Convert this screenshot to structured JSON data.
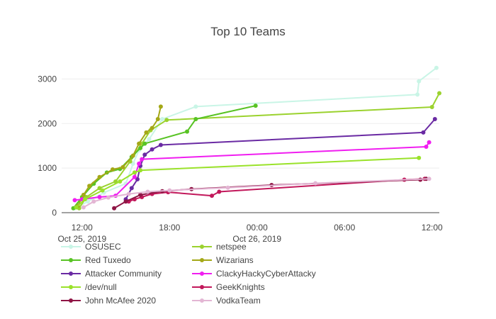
{
  "chart_data": {
    "type": "line",
    "title": "Top 10 Teams",
    "xlabel": "",
    "ylabel": "",
    "ylim": [
      0,
      3500
    ],
    "xlim_hours": [
      10.6,
      36.5
    ],
    "x_ticks": [
      {
        "hour": 12,
        "label": "12:00",
        "sublabel": "Oct 25, 2019"
      },
      {
        "hour": 18,
        "label": "18:00",
        "sublabel": ""
      },
      {
        "hour": 24,
        "label": "00:00",
        "sublabel": "Oct 26, 2019"
      },
      {
        "hour": 30,
        "label": "06:00",
        "sublabel": ""
      },
      {
        "hour": 36,
        "label": "12:00",
        "sublabel": ""
      }
    ],
    "y_ticks": [
      0,
      1000,
      2000,
      3000
    ],
    "x_unit_note": "x values are hours since Oct 25, 2019 00:00",
    "series": [
      {
        "name": "OSUSEC",
        "color": "#c9f5e6",
        "x": [
          11.5,
          12.4,
          13.5,
          15.0,
          15.5,
          15.9,
          16.6,
          17.5,
          19.8,
          35.0,
          35.1,
          36.3
        ],
        "y": [
          100,
          250,
          450,
          650,
          1100,
          1400,
          1650,
          2100,
          2380,
          2650,
          2950,
          3250
        ]
      },
      {
        "name": "netspee",
        "color": "#9bd22e",
        "x": [
          11.8,
          12.3,
          13.2,
          14.3,
          15.3,
          16.1,
          16.7,
          17.8,
          36.0,
          36.5
        ],
        "y": [
          100,
          350,
          550,
          700,
          1150,
          1550,
          1850,
          2080,
          2370,
          2680
        ]
      },
      {
        "name": "Red Tuxedo",
        "color": "#58c324",
        "x": [
          11.4,
          12.0,
          12.8,
          13.7,
          14.6,
          15.4,
          16.0,
          16.3,
          19.2,
          19.8,
          23.9
        ],
        "y": [
          100,
          350,
          650,
          900,
          980,
          1250,
          1450,
          1550,
          1820,
          2100,
          2400
        ]
      },
      {
        "name": "Wizarians",
        "color": "#a4a817",
        "x": [
          11.7,
          12.1,
          12.5,
          13.2,
          14.1,
          14.8,
          15.5,
          15.9,
          16.4,
          16.8,
          17.2,
          17.4
        ],
        "y": [
          150,
          400,
          600,
          800,
          970,
          1020,
          1280,
          1550,
          1800,
          1900,
          2100,
          2380
        ]
      },
      {
        "name": "Attacker Community",
        "color": "#6a2aa3",
        "x": [
          15.0,
          15.4,
          15.8,
          16.0,
          16.3,
          16.8,
          17.4,
          35.4,
          36.2
        ],
        "y": [
          300,
          550,
          750,
          1050,
          1300,
          1420,
          1520,
          1800,
          2100
        ]
      },
      {
        "name": "ClackyHackyCyberAttacky",
        "color": "#f01ef0",
        "x": [
          11.5,
          12.0,
          13.2,
          14.3,
          15.6,
          15.9,
          16.1,
          35.6,
          35.8
        ],
        "y": [
          280,
          300,
          350,
          380,
          800,
          1100,
          1200,
          1480,
          1580
        ]
      },
      {
        "name": "/dev/null",
        "color": "#9ae22a",
        "x": [
          11.6,
          12.2,
          13.4,
          14.6,
          15.6,
          16.0,
          35.1
        ],
        "y": [
          120,
          300,
          500,
          700,
          900,
          950,
          1230
        ]
      },
      {
        "name": "GeekKnights",
        "color": "#c2185b",
        "x": [
          15.2,
          15.6,
          16.1,
          16.8,
          17.9,
          20.9,
          21.4,
          34.1,
          35.5
        ],
        "y": [
          250,
          300,
          350,
          420,
          460,
          380,
          470,
          740,
          760
        ]
      },
      {
        "name": "John McAfee 2020",
        "color": "#8f1545",
        "x": [
          14.2,
          15.0,
          16.0,
          17.5,
          19.5,
          25.0,
          35.2,
          35.6
        ],
        "y": [
          100,
          250,
          400,
          480,
          530,
          620,
          740,
          760
        ]
      },
      {
        "name": "VodkaTeam",
        "color": "#e3b6d4",
        "x": [
          12.1,
          12.8,
          13.8,
          15.2,
          16.5,
          18.0,
          22.0,
          28.0,
          35.8
        ],
        "y": [
          120,
          250,
          340,
          420,
          470,
          500,
          560,
          660,
          760
        ]
      }
    ]
  }
}
